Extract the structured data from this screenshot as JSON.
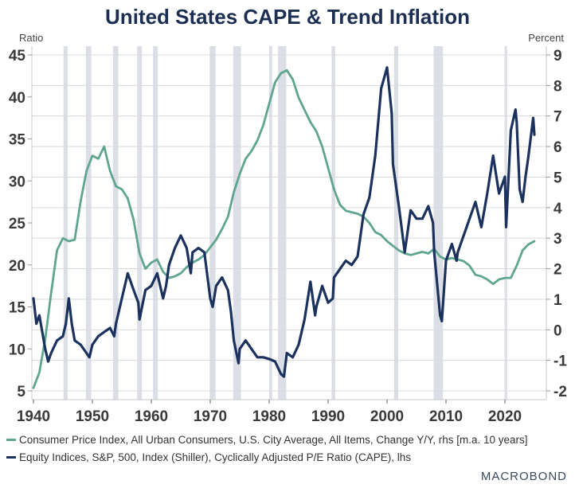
{
  "chart_data": {
    "type": "line",
    "title": "United States CAPE & Trend Inflation",
    "left_axis": {
      "label": "Ratio",
      "range": [
        5,
        45
      ],
      "ticks": [
        5,
        10,
        15,
        20,
        25,
        30,
        35,
        40,
        45
      ]
    },
    "right_axis": {
      "label": "Percent",
      "range": [
        -2,
        9
      ],
      "ticks": [
        -2,
        -1,
        0,
        1,
        2,
        3,
        4,
        5,
        6,
        7,
        8,
        9
      ]
    },
    "x_axis": {
      "range": [
        1940,
        2027
      ],
      "ticks": [
        1940,
        1950,
        1960,
        1970,
        1980,
        1990,
        2000,
        2010,
        2020
      ]
    },
    "grid": true,
    "recessions": [
      [
        1945.1,
        1945.8
      ],
      [
        1948.9,
        1949.8
      ],
      [
        1953.5,
        1954.4
      ],
      [
        1957.6,
        1958.4
      ],
      [
        1960.3,
        1961.1
      ],
      [
        1969.9,
        1970.9
      ],
      [
        1973.9,
        1975.2
      ],
      [
        1980.0,
        1980.5
      ],
      [
        1981.5,
        1982.9
      ],
      [
        1990.6,
        1991.2
      ],
      [
        2001.2,
        2001.9
      ],
      [
        2007.9,
        2009.5
      ],
      [
        2020.1,
        2020.3
      ]
    ],
    "series": [
      {
        "name": "Consumer Price Index, All Urban Consumers, U.S. City Average, All Items, Change Y/Y, rhs [m.a. 10 years]",
        "axis": "right",
        "color": "#5fa58f",
        "x": [
          1940,
          1941,
          1942,
          1943,
          1944,
          1945,
          1946,
          1947,
          1948,
          1949,
          1950,
          1951,
          1952,
          1953,
          1954,
          1955,
          1956,
          1957,
          1958,
          1959,
          1960,
          1961,
          1962,
          1963,
          1964,
          1965,
          1966,
          1967,
          1968,
          1969,
          1970,
          1971,
          1972,
          1973,
          1974,
          1975,
          1976,
          1977,
          1978,
          1979,
          1980,
          1981,
          1982,
          1983,
          1984,
          1985,
          1986,
          1987,
          1988,
          1989,
          1990,
          1991,
          1992,
          1993,
          1994,
          1995,
          1996,
          1997,
          1998,
          1999,
          2000,
          2001,
          2002,
          2003,
          2004,
          2005,
          2006,
          2007,
          2008,
          2009,
          2010,
          2011,
          2012,
          2013,
          2014,
          2015,
          2016,
          2017,
          2018,
          2019,
          2020,
          2021,
          2022,
          2023,
          2024,
          2025
        ],
        "values": [
          -1.9,
          -1.4,
          -0.3,
          1.2,
          2.6,
          3.0,
          2.9,
          2.95,
          4.2,
          5.2,
          5.7,
          5.6,
          6.0,
          5.2,
          4.7,
          4.6,
          4.3,
          3.6,
          2.5,
          2.0,
          2.2,
          2.3,
          1.9,
          1.7,
          1.75,
          1.85,
          2.05,
          2.2,
          2.3,
          2.45,
          2.7,
          2.95,
          3.3,
          3.7,
          4.5,
          5.1,
          5.6,
          5.85,
          6.2,
          6.7,
          7.4,
          8.1,
          8.4,
          8.5,
          8.2,
          7.6,
          7.2,
          6.8,
          6.5,
          6.0,
          5.3,
          4.6,
          4.1,
          3.9,
          3.85,
          3.8,
          3.7,
          3.5,
          3.2,
          3.1,
          2.9,
          2.75,
          2.6,
          2.5,
          2.45,
          2.5,
          2.55,
          2.5,
          2.65,
          2.4,
          2.3,
          2.35,
          2.3,
          2.25,
          2.1,
          1.8,
          1.75,
          1.65,
          1.5,
          1.65,
          1.7,
          1.7,
          2.1,
          2.6,
          2.8,
          2.9
        ]
      },
      {
        "name": "Equity Indices, S&P, 500, Index (Shiller), Cyclically Adjusted P/E Ratio (CAPE), lhs",
        "axis": "left",
        "color": "#1b315e",
        "x": [
          1940,
          1940.5,
          1941,
          1941.5,
          1942,
          1942.5,
          1943,
          1944,
          1945,
          1945.5,
          1946,
          1946.5,
          1947,
          1948,
          1949,
          1949.5,
          1950,
          1951,
          1952,
          1953,
          1953.7,
          1954,
          1955,
          1956,
          1957,
          1957.8,
          1958,
          1959,
          1960,
          1961,
          1962,
          1962.5,
          1963,
          1964,
          1965,
          1966,
          1966.7,
          1967,
          1968,
          1969,
          1970,
          1970.4,
          1971,
          1972,
          1973,
          1973.5,
          1974,
          1974.8,
          1975,
          1976,
          1977,
          1978,
          1979,
          1980,
          1981,
          1982,
          1982.5,
          1983,
          1984,
          1985,
          1986,
          1987,
          1987.8,
          1988,
          1989,
          1990,
          1990.8,
          1991,
          1992,
          1993,
          1994,
          1995,
          1996,
          1997,
          1998,
          1999,
          2000,
          2000.8,
          2001,
          2002,
          2003,
          2004,
          2005,
          2006,
          2007,
          2007.8,
          2008,
          2009,
          2009.3,
          2010,
          2011,
          2011.8,
          2012,
          2013,
          2014,
          2015,
          2016,
          2017,
          2018,
          2019,
          2020,
          2020.2,
          2021,
          2021.8,
          2022,
          2022.5,
          2023,
          2023.5,
          2024,
          2024.8,
          2025
        ],
        "values": [
          16,
          13,
          14,
          12,
          10,
          8.5,
          9.5,
          11,
          11.5,
          13,
          16,
          13,
          11,
          10.5,
          9.5,
          9,
          10.5,
          11.5,
          12,
          12.5,
          11.5,
          13,
          16,
          19,
          17,
          15.5,
          13.5,
          17,
          17.5,
          19,
          16,
          17.5,
          20,
          22,
          23.5,
          22,
          19,
          21.5,
          22,
          21.5,
          16,
          15,
          17.5,
          18.5,
          17,
          14.5,
          11,
          8.3,
          10,
          11,
          10,
          9,
          9,
          8.8,
          8.5,
          7,
          6.7,
          9.5,
          9,
          10.5,
          13.5,
          18,
          14,
          15,
          17.5,
          15.5,
          16,
          18.5,
          19.5,
          20.5,
          20,
          21,
          26,
          28,
          33,
          41,
          43.5,
          38,
          32,
          27,
          21.5,
          26.5,
          25.5,
          25.5,
          27,
          25,
          21.5,
          14,
          13.3,
          20.5,
          22.5,
          20.5,
          21.5,
          23.5,
          25.5,
          27.5,
          24.5,
          28.5,
          33,
          28.5,
          30.5,
          24.5,
          36,
          38.5,
          37,
          29,
          27.5,
          30.5,
          33,
          37.5,
          35.5
        ]
      }
    ]
  },
  "legend": {
    "items": [
      {
        "label": "Consumer Price Index, All Urban Consumers, U.S. City Average, All Items, Change Y/Y, rhs [m.a. 10 years]",
        "color": "#5fa58f"
      },
      {
        "label": "Equity Indices, S&P, 500, Index (Shiller), Cyclically Adjusted P/E Ratio (CAPE), lhs",
        "color": "#1b315e"
      }
    ]
  },
  "logo": "MACROBOND",
  "colors": {
    "grid": "#d9d9de",
    "recession": "#dcdee5",
    "axis": "#c8c8cc"
  }
}
